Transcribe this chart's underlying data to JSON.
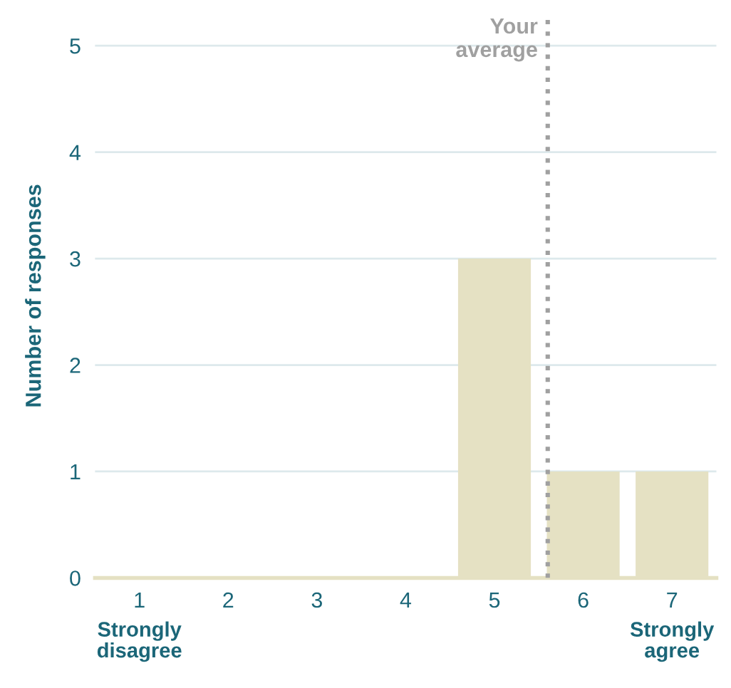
{
  "chart_data": {
    "type": "bar",
    "ylabel": "Number of responses",
    "x": [
      1,
      2,
      3,
      4,
      5,
      6,
      7
    ],
    "values": [
      0,
      0,
      0,
      0,
      3,
      1,
      1
    ],
    "color": "#e5e1c3",
    "xlim": [
      0.5,
      7.5
    ],
    "xticks": [
      1,
      2,
      3,
      4,
      5,
      6,
      7
    ],
    "ylim": [
      0,
      5.3
    ],
    "yticks": [
      0,
      1,
      2,
      3,
      4,
      5
    ],
    "grid": "y",
    "ref_lines": [
      {
        "axis": "x",
        "value": 5.6,
        "label": "Your\naverage",
        "color": "#a0a0a0",
        "line_style": "dotted"
      }
    ],
    "annotations": [
      "Strongly\ndisagree",
      "Strongly\nagree"
    ]
  }
}
